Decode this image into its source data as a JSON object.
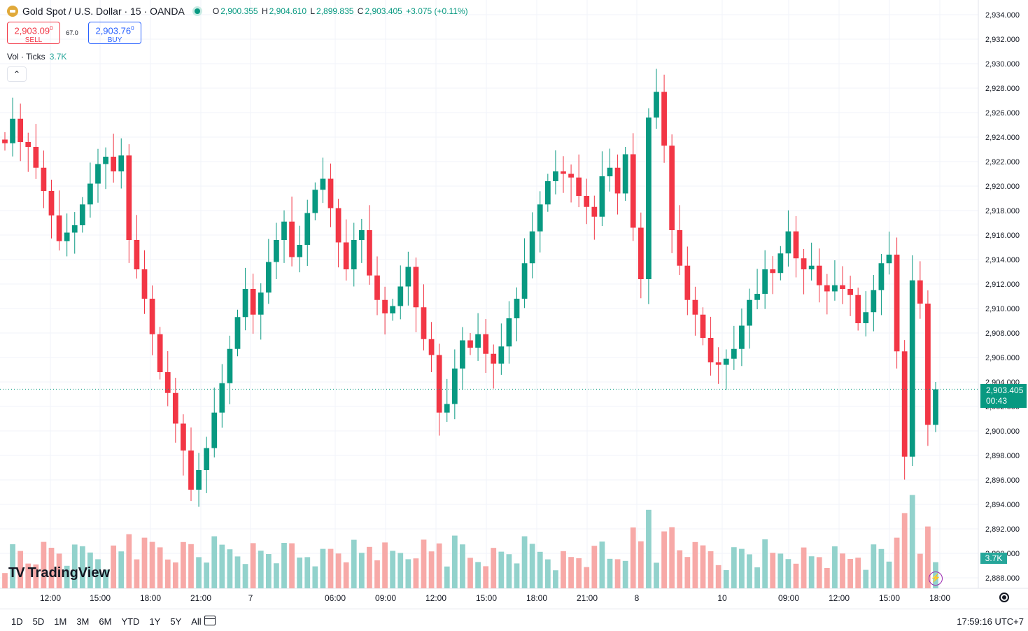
{
  "header": {
    "symbol": "Gold Spot / U.S. Dollar · 15 · OANDA",
    "ohlc": {
      "o_label": "O",
      "o": "2,900.355",
      "h_label": "H",
      "h": "2,904.610",
      "l_label": "L",
      "l": "2,899.835",
      "c_label": "C",
      "c": "2,903.405",
      "change": "+3.075 (+0.11%)"
    }
  },
  "trade": {
    "sell_price": "2,903.09",
    "sell_sup": "0",
    "sell_label": "SELL",
    "spread": "67.0",
    "buy_price": "2,903.76",
    "buy_sup": "0",
    "buy_label": "BUY"
  },
  "volume": {
    "label": "Vol · Ticks",
    "value": "3.7K"
  },
  "collapse_icon": "chevron-up-icon",
  "logo": {
    "text": "TradingView"
  },
  "price_tag": {
    "price": "2,903.405",
    "countdown": "00:43"
  },
  "vol_tag": "3.7K",
  "bottom_bar": {
    "ranges": [
      "1D",
      "5D",
      "1M",
      "3M",
      "6M",
      "YTD",
      "1Y",
      "5Y",
      "All"
    ],
    "clock": "17:59:16 UTC+7"
  },
  "colors": {
    "up": "#089981",
    "down": "#f23645",
    "vol_up": "#92d2cc",
    "vol_down": "#f7a9a7",
    "grid": "#f0f3fa"
  },
  "chart_data": {
    "type": "candlestick",
    "y_ticks": [
      2888,
      2890,
      2892,
      2894,
      2896,
      2898,
      2900,
      2902,
      2904,
      2906,
      2908,
      2910,
      2912,
      2914,
      2916,
      2918,
      2920,
      2922,
      2924,
      2926,
      2928,
      2930,
      2932,
      2934
    ],
    "y_tick_labels": [
      "2,888.000",
      "2,890.000",
      "2,892.000",
      "2,894.000",
      "2,896.000",
      "2,898.000",
      "2,900.000",
      "2,902.000",
      "2,904.000",
      "2,906.000",
      "2,908.000",
      "2,910.000",
      "2,912.000",
      "2,914.000",
      "2,916.000",
      "2,918.000",
      "2,920.000",
      "2,922.000",
      "2,924.000",
      "2,926.000",
      "2,928.000",
      "2,930.000",
      "2,932.000",
      "2,934.000"
    ],
    "x_labels": [
      "12:00",
      "15:00",
      "18:00",
      "21:00",
      "7",
      "06:00",
      "09:00",
      "12:00",
      "15:00",
      "18:00",
      "21:00",
      "8",
      "10",
      "09:00",
      "12:00",
      "15:00",
      "18:00"
    ],
    "last_price": 2903.405,
    "candles_close": [
      2923.5,
      2925.5,
      2923.6,
      2923.2,
      2921.5,
      2919.6,
      2917.6,
      2915.5,
      2916.2,
      2916.8,
      2918.5,
      2920.2,
      2921.8,
      2922.4,
      2921.2,
      2922.5,
      2915.6,
      2913.2,
      2910.8,
      2907.9,
      2904.8,
      2903.1,
      2900.6,
      2898.4,
      2895.2,
      2896.8,
      2898.6,
      2901.5,
      2903.9,
      2906.7,
      2909.3,
      2911.6,
      2909.5,
      2911.3,
      2913.8,
      2915.6,
      2917.1,
      2914.2,
      2915.2,
      2917.8,
      2919.7,
      2920.6,
      2918.2,
      2915.4,
      2913.2,
      2915.6,
      2916.4,
      2912.7,
      2910.7,
      2909.6,
      2910.2,
      2911.8,
      2913.4,
      2910.1,
      2907.5,
      2906.2,
      2901.5,
      2902.2,
      2905.1,
      2907.4,
      2906.8,
      2907.9,
      2906.3,
      2905.5,
      2906.9,
      2909.2,
      2910.8,
      2913.7,
      2916.3,
      2918.5,
      2920.4,
      2921.2,
      2921.0,
      2920.7,
      2919.2,
      2918.3,
      2917.5,
      2920.8,
      2921.5,
      2919.4,
      2922.6,
      2916.6,
      2912.4,
      2925.6,
      2927.7,
      2923.3,
      2916.4,
      2913.5,
      2910.7,
      2909.5,
      2907.6,
      2905.6,
      2905.4,
      2905.9,
      2906.7,
      2908.6,
      2910.7,
      2911.2,
      2913.2,
      2912.9,
      2914.5,
      2916.3,
      2914.1,
      2913.2,
      2913.5,
      2911.9,
      2911.4,
      2911.9,
      2911.6,
      2911.1,
      2908.8,
      2909.7,
      2911.5,
      2913.7,
      2914.4,
      2906.5,
      2897.9,
      2912.3,
      2910.4,
      2900.5,
      2903.4
    ]
  }
}
